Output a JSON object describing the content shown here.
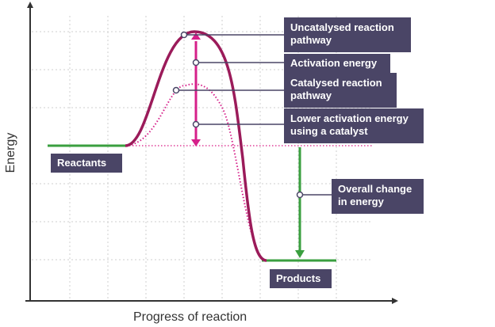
{
  "axes": {
    "x_label": "Progress of reaction",
    "y_label": "Energy"
  },
  "labels": {
    "uncatalysed": "Uncatalysed reaction pathway",
    "activation_energy": "Activation energy",
    "catalysed": "Catalysed reaction pathway",
    "lower_activation": "Lower activation energy using a catalyst",
    "overall_change": "Overall change in energy",
    "reactants": "Reactants",
    "products": "Products"
  },
  "colors": {
    "uncatalysed_curve": "#9b1b5a",
    "catalysed_curve": "#d6208a",
    "baseline_dotted": "#e0409a",
    "green": "#3a9f3f",
    "arrow_magenta": "#d6208a",
    "callout_bg": "#4a4566",
    "grid": "#cfcfcf",
    "axis": "#333333"
  }
}
